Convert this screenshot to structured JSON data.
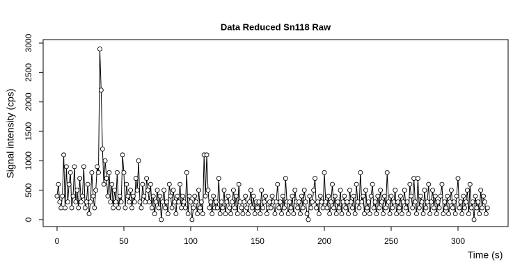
{
  "chart_data": {
    "type": "point-line",
    "title": "Data Reduced Sn118 Raw",
    "x_label": "Time (s)",
    "y_label": "Signal intensity (cps)",
    "xlim": [
      -10.4,
      337.5
    ],
    "ylim": [
      -118,
      3059
    ],
    "xticks": [
      0,
      50,
      100,
      150,
      200,
      250,
      300
    ],
    "yticks": [
      0,
      500,
      1000,
      1500,
      2000,
      2500,
      3000
    ],
    "color": "#000000",
    "x": [
      0,
      1,
      2,
      3,
      4,
      5,
      6,
      7,
      8,
      9,
      10,
      11,
      12,
      13,
      14,
      15,
      16,
      17,
      18,
      19,
      20,
      21,
      22,
      23,
      24,
      25,
      26,
      27,
      28,
      29,
      30,
      31,
      32,
      33,
      34,
      35,
      36,
      37,
      38,
      39,
      40,
      41,
      42,
      43,
      44,
      45,
      46,
      47,
      48,
      49,
      50,
      51,
      52,
      53,
      54,
      55,
      56,
      57,
      58,
      59,
      60,
      61,
      62,
      63,
      64,
      65,
      66,
      67,
      68,
      69,
      70,
      71,
      72,
      73,
      74,
      75,
      76,
      77,
      78,
      79,
      80,
      81,
      82,
      83,
      84,
      85,
      86,
      87,
      88,
      89,
      90,
      91,
      92,
      93,
      94,
      95,
      96,
      97,
      98,
      99,
      100,
      101,
      102,
      103,
      104,
      105,
      106,
      107,
      108,
      109,
      110,
      111,
      112,
      113,
      114,
      115,
      116,
      117,
      118,
      119,
      120,
      121,
      122,
      123,
      124,
      125,
      126,
      127,
      128,
      129,
      130,
      131,
      132,
      133,
      134,
      135,
      136,
      137,
      138,
      139,
      140,
      141,
      142,
      143,
      144,
      145,
      146,
      147,
      148,
      149,
      150,
      151,
      152,
      153,
      154,
      155,
      156,
      157,
      158,
      159,
      160,
      161,
      162,
      163,
      164,
      165,
      166,
      167,
      168,
      169,
      170,
      171,
      172,
      173,
      174,
      175,
      176,
      177,
      178,
      179,
      180,
      181,
      182,
      183,
      184,
      185,
      186,
      187,
      188,
      189,
      190,
      191,
      192,
      193,
      194,
      195,
      196,
      197,
      198,
      199,
      200,
      201,
      202,
      203,
      204,
      205,
      206,
      207,
      208,
      209,
      210,
      211,
      212,
      213,
      214,
      215,
      216,
      217,
      218,
      219,
      220,
      221,
      222,
      223,
      224,
      225,
      226,
      227,
      228,
      229,
      230,
      231,
      232,
      233,
      234,
      235,
      236,
      237,
      238,
      239,
      240,
      241,
      242,
      243,
      244,
      245,
      246,
      247,
      248,
      249,
      250,
      251,
      252,
      253,
      254,
      255,
      256,
      257,
      258,
      259,
      260,
      261,
      262,
      263,
      264,
      265,
      266,
      267,
      268,
      269,
      270,
      271,
      272,
      273,
      274,
      275,
      276,
      277,
      278,
      279,
      280,
      281,
      282,
      283,
      284,
      285,
      286,
      287,
      288,
      289,
      290,
      291,
      292,
      293,
      294,
      295,
      296,
      297,
      298,
      299,
      300,
      301,
      302,
      303,
      304,
      305,
      306,
      307,
      308,
      309,
      310,
      311,
      312,
      313,
      314,
      315,
      316,
      317,
      318,
      319,
      320,
      321,
      322
    ],
    "values": [
      400,
      600,
      300,
      200,
      400,
      1100,
      200,
      900,
      300,
      600,
      800,
      200,
      400,
      900,
      300,
      500,
      200,
      700,
      300,
      400,
      900,
      200,
      300,
      600,
      100,
      300,
      800,
      400,
      200,
      500,
      900,
      800,
      2900,
      2200,
      1200,
      600,
      1000,
      700,
      400,
      800,
      300,
      600,
      200,
      500,
      300,
      800,
      200,
      400,
      300,
      1100,
      800,
      200,
      600,
      400,
      300,
      500,
      200,
      400,
      300,
      700,
      500,
      1000,
      300,
      200,
      600,
      400,
      300,
      700,
      500,
      300,
      600,
      200,
      400,
      100,
      300,
      500,
      200,
      400,
      0,
      300,
      500,
      200,
      300,
      100,
      600,
      400,
      200,
      500,
      300,
      100,
      400,
      300,
      600,
      200,
      400,
      300,
      200,
      800,
      100,
      400,
      300,
      0,
      200,
      400,
      300,
      100,
      500,
      200,
      300,
      100,
      1100,
      400,
      1100,
      500,
      200,
      300,
      100,
      400,
      200,
      300,
      200,
      700,
      100,
      300,
      200,
      500,
      100,
      300,
      400,
      200,
      100,
      300,
      500,
      200,
      400,
      100,
      600,
      300,
      200,
      100,
      300,
      400,
      200,
      100,
      300,
      500,
      200,
      400,
      100,
      300,
      200,
      300,
      100,
      500,
      200,
      300,
      400,
      100,
      200,
      300,
      200,
      400,
      300,
      100,
      300,
      600,
      200,
      300,
      100,
      400,
      200,
      700,
      300,
      100,
      300,
      200,
      400,
      100,
      500,
      300,
      200,
      300,
      100,
      400,
      200,
      500,
      300,
      100,
      0,
      400,
      200,
      300,
      500,
      700,
      200,
      300,
      100,
      400,
      300,
      200,
      800,
      300,
      200,
      400,
      100,
      300,
      600,
      200,
      400,
      100,
      300,
      200,
      500,
      100,
      300,
      400,
      200,
      300,
      100,
      500,
      300,
      200,
      400,
      100,
      600,
      300,
      200,
      800,
      300,
      400,
      100,
      500,
      200,
      300,
      100,
      400,
      600,
      200,
      300,
      100,
      400,
      200,
      500,
      300,
      100,
      400,
      200,
      800,
      300,
      100,
      400,
      200,
      300,
      500,
      100,
      300,
      200,
      400,
      100,
      300,
      500,
      200,
      300,
      100,
      600,
      400,
      200,
      700,
      300,
      100,
      700,
      200,
      400,
      300,
      100,
      500,
      200,
      300,
      600,
      100,
      300,
      500,
      200,
      400,
      100,
      300,
      200,
      400,
      600,
      100,
      300,
      200,
      400,
      100,
      300,
      500,
      200,
      300,
      100,
      400,
      700,
      200,
      300,
      100,
      400,
      200,
      300,
      500,
      100,
      600,
      200,
      300,
      0,
      400,
      200,
      300,
      100,
      500,
      200,
      400,
      300,
      100,
      200
    ]
  }
}
